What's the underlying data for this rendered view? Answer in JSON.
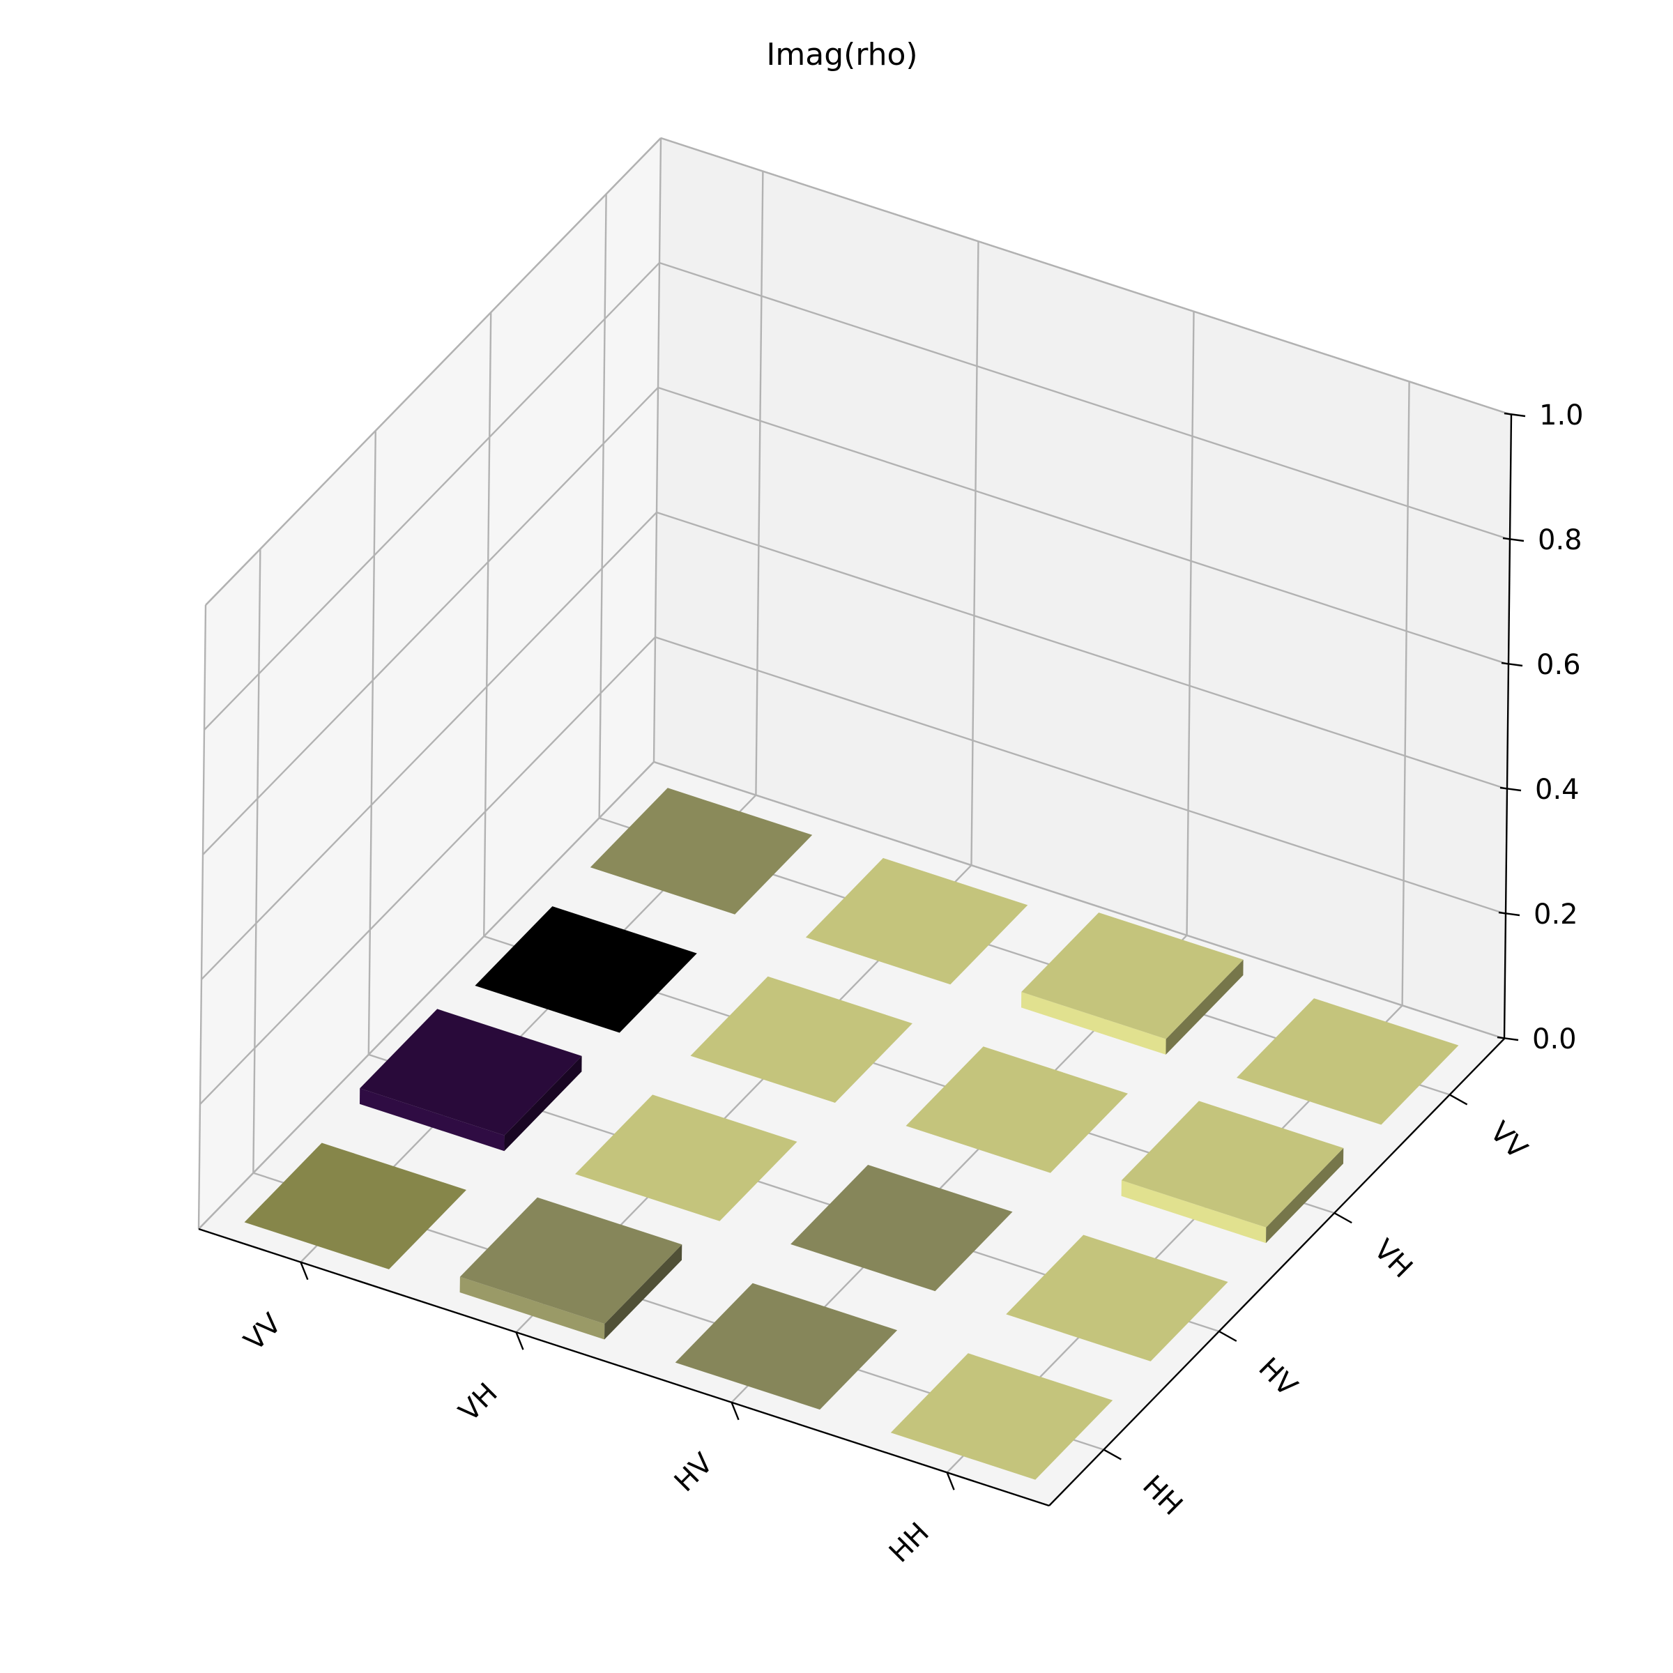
{
  "chart_data": {
    "type": "bar3d",
    "title": "Imag(rho)",
    "x_categories": [
      "HH",
      "HV",
      "VH",
      "VV"
    ],
    "y_categories": [
      "HH",
      "HV",
      "VH",
      "VV"
    ],
    "z_ticks": [
      "0.0",
      "0.2",
      "0.4",
      "0.6",
      "0.8",
      "1.0"
    ],
    "zlim": [
      0.0,
      1.0
    ],
    "grid": true,
    "colormap": "magma",
    "matrix": [
      [
        0.0,
        0.0,
        0.025,
        0.0
      ],
      [
        0.0,
        0.0,
        0.0,
        0.025
      ],
      [
        0.025,
        0.0,
        0.0,
        0.0
      ],
      [
        0.0,
        0.025,
        0.0,
        0.0
      ]
    ],
    "cell_colors": [
      [
        "#c4c47c",
        "#86865a",
        "#86865a",
        "#86864a"
      ],
      [
        "#c4c47c",
        "#86865a",
        "#c4c47c",
        "#290a3a"
      ],
      [
        "#c4c47c",
        "#c4c47c",
        "#c4c47c",
        "#000000"
      ],
      [
        "#c4c47c",
        "#c4c47c",
        "#c4c47c",
        "#8a8a5a"
      ]
    ]
  }
}
